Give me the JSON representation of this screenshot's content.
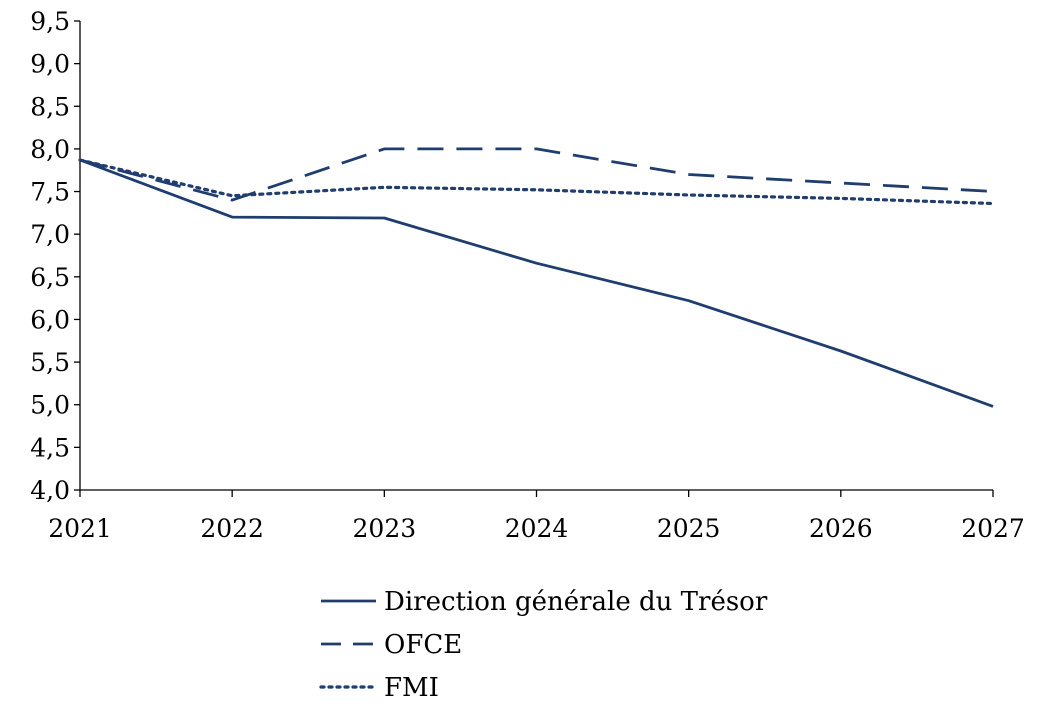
{
  "chart_data": {
    "type": "line",
    "title": "",
    "xlabel": "",
    "ylabel": "",
    "x": [
      "2021",
      "2022",
      "2023",
      "2024",
      "2025",
      "2026",
      "2027"
    ],
    "y_ticks": [
      "4,0",
      "4,5",
      "5,0",
      "5,5",
      "6,0",
      "6,5",
      "7,0",
      "7,5",
      "8,0",
      "8,5",
      "9,0",
      "9,5"
    ],
    "ylim": [
      4.0,
      9.5
    ],
    "grid": false,
    "legend_position": "bottom",
    "series": [
      {
        "name": "Direction générale du Trésor",
        "style": "solid",
        "color": "#1f3d6e",
        "values": [
          7.87,
          7.2,
          7.19,
          6.66,
          6.22,
          5.63,
          4.98
        ]
      },
      {
        "name": "OFCE",
        "style": "dashed",
        "color": "#1f3d6e",
        "values": [
          7.87,
          7.4,
          8.0,
          8.0,
          7.7,
          7.6,
          7.5
        ]
      },
      {
        "name": "FMI",
        "style": "dotted",
        "color": "#1f3d6e",
        "values": [
          7.87,
          7.45,
          7.55,
          7.52,
          7.46,
          7.42,
          7.36
        ]
      }
    ]
  }
}
